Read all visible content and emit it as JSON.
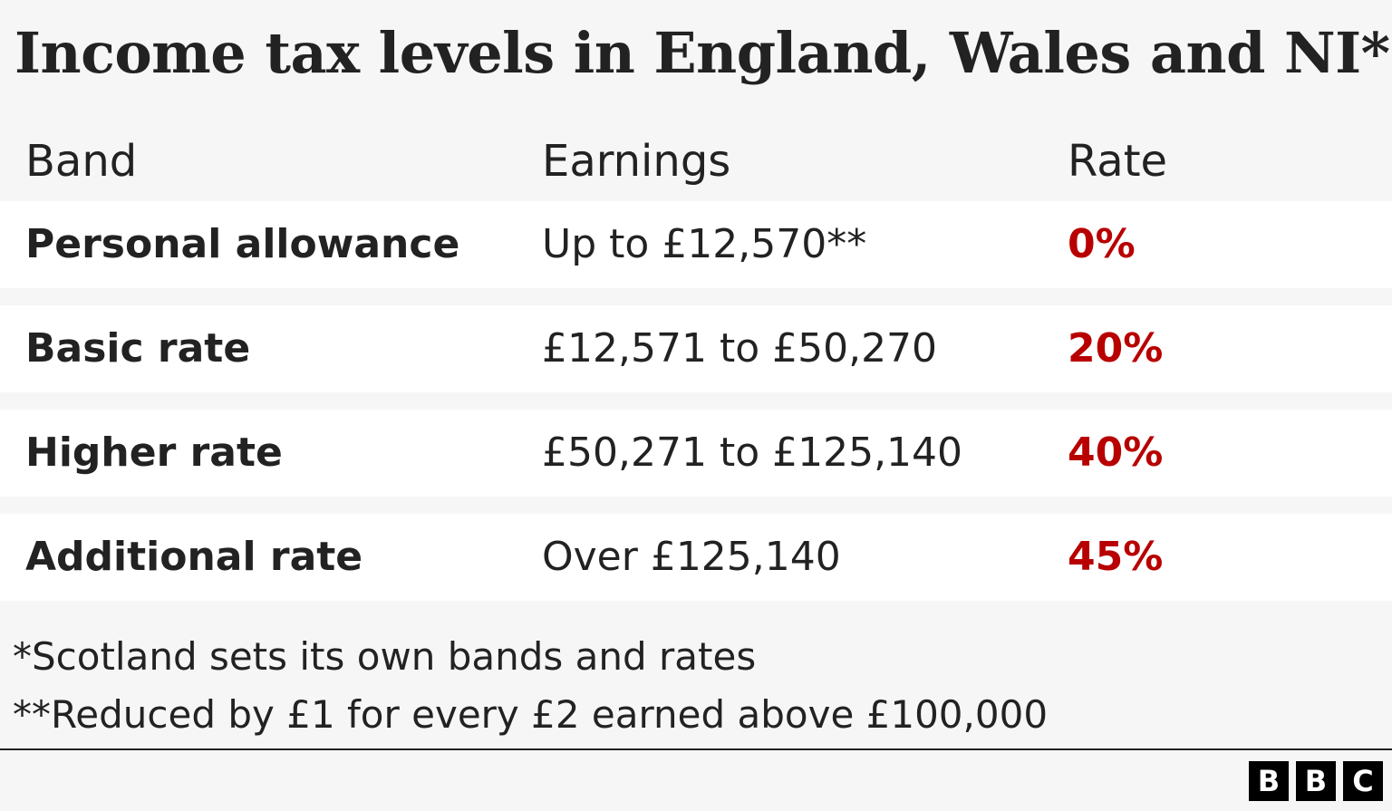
{
  "title": "Income tax levels in England, Wales and NI*",
  "table": {
    "header": [
      "Band",
      "Earnings",
      "Rate"
    ],
    "rows": [
      [
        "Personal allowance",
        "Up to £12,570**",
        "0%"
      ],
      [
        "Basic rate",
        "£12,571 to £50,270",
        "20%"
      ],
      [
        "Higher rate",
        "£50,271 to £125,140",
        "40%"
      ],
      [
        "Additional rate",
        "Over £125,140",
        "45%"
      ]
    ]
  },
  "footnotes": [
    "*Scotland sets its own bands and rates",
    "**Reduced by £1 for every £2 earned above £100,000"
  ],
  "logo": [
    "B",
    "B",
    "C"
  ]
}
